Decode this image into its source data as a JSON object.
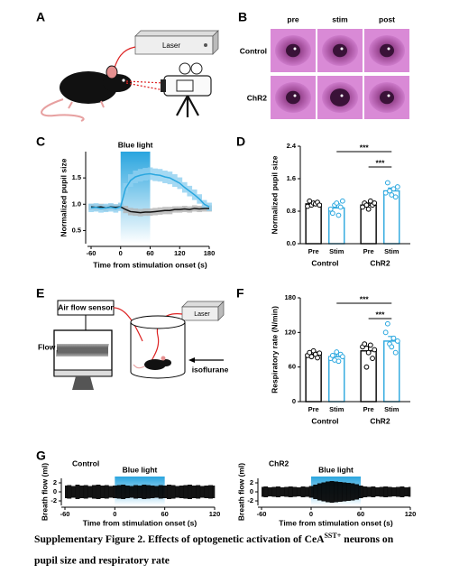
{
  "figure": {
    "A": {
      "letter": "A",
      "laser": "Laser"
    },
    "B": {
      "letter": "B",
      "columns": [
        "pre",
        "stim",
        "post"
      ],
      "rows": [
        "Control",
        "ChR2"
      ]
    },
    "E": {
      "letter": "E",
      "sensor": "Air flow sensor",
      "laser": "Laser",
      "flow": "Flow",
      "gas": "isoflurane"
    }
  },
  "chart_data": [
    {
      "type": "line",
      "panel": "C",
      "annotation": "Blue light",
      "shade": [
        0,
        60
      ],
      "xlabel": "Time from stimulation onset (s)",
      "ylabel": "Normalized pupil size",
      "xlim": [
        -60,
        180
      ],
      "ylim": [
        0.25,
        2.0
      ],
      "xticks": [
        -60,
        0,
        60,
        120,
        180
      ],
      "yticks": [
        0.5,
        {
          "value": 1.0,
          "label": "1.0"
        },
        1.5
      ],
      "x": [
        -60,
        -50,
        -40,
        -30,
        -20,
        -10,
        0,
        10,
        20,
        30,
        40,
        50,
        60,
        70,
        80,
        90,
        100,
        110,
        120,
        130,
        140,
        150,
        160,
        170,
        180
      ],
      "series": [
        {
          "color": "#111111",
          "band_color": "#b3b3b3",
          "values": [
            0.95,
            0.94,
            0.95,
            0.93,
            0.95,
            0.94,
            0.95,
            0.9,
            0.86,
            0.85,
            0.84,
            0.85,
            0.85,
            0.86,
            0.87,
            0.88,
            0.88,
            0.9,
            0.9,
            0.91,
            0.9,
            0.92,
            0.91,
            0.92,
            0.92
          ],
          "errors": [
            0.06,
            0.06,
            0.06,
            0.06,
            0.06,
            0.06,
            0.06,
            0.07,
            0.07,
            0.07,
            0.07,
            0.07,
            0.07,
            0.07,
            0.07,
            0.07,
            0.07,
            0.06,
            0.06,
            0.06,
            0.06,
            0.06,
            0.06,
            0.06,
            0.06
          ]
        },
        {
          "color": "#2aa7df",
          "band_color": "#8fd0f0",
          "values": [
            0.93,
            0.94,
            0.92,
            0.93,
            0.94,
            0.92,
            0.95,
            1.3,
            1.45,
            1.52,
            1.55,
            1.57,
            1.58,
            1.56,
            1.55,
            1.52,
            1.5,
            1.45,
            1.4,
            1.32,
            1.25,
            1.18,
            1.1,
            1.0,
            0.95
          ],
          "errors": [
            0.08,
            0.08,
            0.08,
            0.08,
            0.08,
            0.08,
            0.08,
            0.1,
            0.12,
            0.12,
            0.12,
            0.12,
            0.12,
            0.12,
            0.12,
            0.12,
            0.12,
            0.12,
            0.11,
            0.1,
            0.1,
            0.1,
            0.09,
            0.08,
            0.08
          ]
        }
      ]
    },
    {
      "type": "bar",
      "panel": "D",
      "ylabel": "Normalized pupil size",
      "ylim": [
        0,
        2.4
      ],
      "yticks": [
        {
          "value": 0,
          "label": "0.0"
        },
        0.8,
        1.6,
        2.4
      ],
      "categories": [
        "Pre",
        "Stim",
        "Pre",
        "Stim"
      ],
      "groups": [
        "Control",
        "ChR2"
      ],
      "colors": [
        "#000000",
        "#2aa7df",
        "#000000",
        "#2aa7df"
      ],
      "values": [
        0.98,
        0.88,
        0.95,
        1.3
      ],
      "errors": [
        0.05,
        0.1,
        0.05,
        0.07
      ],
      "points": [
        [
          0.92,
          1.05,
          0.95,
          1.0,
          0.98,
          1.02,
          0.95
        ],
        [
          0.85,
          0.75,
          0.95,
          1.0,
          0.7,
          0.9,
          1.05
        ],
        [
          0.9,
          1.0,
          0.95,
          0.85,
          1.05,
          0.95,
          1.0
        ],
        [
          1.25,
          1.5,
          1.3,
          1.2,
          1.35,
          1.15,
          1.4
        ]
      ],
      "significance": [
        {
          "label": "***",
          "bars": [
            1,
            3
          ]
        },
        {
          "label": "***",
          "bars": [
            2,
            3
          ]
        }
      ]
    },
    {
      "type": "bar",
      "panel": "F",
      "ylabel": "Respiratory rate (N/min)",
      "ylim": [
        0,
        180
      ],
      "yticks": [
        0,
        60,
        120,
        180
      ],
      "categories": [
        "Pre",
        "Stim",
        "Pre",
        "Stim"
      ],
      "groups": [
        "Control",
        "ChR2"
      ],
      "colors": [
        "#000000",
        "#2aa7df",
        "#000000",
        "#2aa7df"
      ],
      "values": [
        82,
        78,
        88,
        105
      ],
      "errors": [
        4,
        5,
        8,
        8
      ],
      "points": [
        [
          80,
          85,
          78,
          88,
          82,
          76,
          84
        ],
        [
          75,
          80,
          72,
          86,
          70,
          82,
          78
        ],
        [
          95,
          100,
          60,
          85,
          98,
          75,
          90
        ],
        [
          120,
          135,
          100,
          95,
          110,
          85,
          105
        ]
      ],
      "significance": [
        {
          "label": "***",
          "bars": [
            1,
            3
          ]
        },
        {
          "label": "***",
          "bars": [
            2,
            3
          ]
        }
      ]
    },
    {
      "type": "trace",
      "panel": "G",
      "title": "Control",
      "annotation": "Blue light",
      "shade": [
        0,
        60
      ],
      "xlabel": "Time from stimulation onset (s)",
      "ylabel": "Breath flow (ml)",
      "xlim": [
        -60,
        120
      ],
      "ylim": [
        -3,
        3
      ],
      "xticks": [
        -60,
        0,
        60,
        120
      ],
      "yticks": [
        -2,
        0,
        2
      ],
      "x": [
        -60,
        -55,
        -50,
        -45,
        -40,
        -35,
        -30,
        -25,
        -20,
        -15,
        -10,
        -5,
        0,
        5,
        10,
        15,
        20,
        25,
        30,
        35,
        40,
        45,
        50,
        55,
        60,
        65,
        70,
        75,
        80,
        85,
        90,
        95,
        100,
        105,
        110,
        115,
        120
      ],
      "values": [
        1.4,
        1.5,
        1.3,
        1.6,
        1.4,
        1.5,
        1.3,
        1.5,
        1.6,
        1.4,
        1.5,
        1.3,
        1.4,
        1.5,
        1.6,
        1.4,
        1.3,
        1.5,
        1.4,
        1.6,
        1.5,
        1.4,
        1.3,
        1.5,
        1.4,
        1.6,
        1.5,
        1.3,
        1.4,
        1.5,
        1.6,
        1.4,
        1.5,
        1.3,
        1.4,
        1.5,
        1.4
      ]
    },
    {
      "type": "trace",
      "title": "ChR2",
      "annotation": "Blue light",
      "shade": [
        0,
        60
      ],
      "xlabel": "Time from stimulation onset (s)",
      "ylabel": "Breath flow (ml)",
      "xlim": [
        -60,
        120
      ],
      "ylim": [
        -3,
        3
      ],
      "xticks": [
        -60,
        0,
        60,
        120
      ],
      "yticks": [
        -2,
        0,
        2
      ],
      "x": [
        -60,
        -55,
        -50,
        -45,
        -40,
        -35,
        -30,
        -25,
        -20,
        -15,
        -10,
        -5,
        0,
        5,
        10,
        15,
        20,
        25,
        30,
        35,
        40,
        45,
        50,
        55,
        60,
        65,
        70,
        75,
        80,
        85,
        90,
        95,
        100,
        105,
        110,
        115,
        120
      ],
      "values": [
        1.1,
        1.2,
        1.0,
        1.1,
        1.2,
        1.0,
        1.1,
        1.2,
        1.1,
        1.0,
        1.2,
        1.1,
        1.3,
        1.6,
        1.9,
        2.1,
        2.3,
        2.4,
        2.3,
        2.2,
        2.1,
        2.0,
        1.9,
        1.7,
        1.4,
        1.2,
        1.1,
        1.2,
        1.0,
        1.1,
        1.2,
        1.1,
        1.0,
        1.1,
        1.2,
        1.0,
        1.1
      ]
    }
  ],
  "caption": {
    "text": "Supplementary Figure 2. Effects of optogenetic activation of CeA",
    "superscript": "SST+",
    "text_after": "neurons on",
    "line2": "pupil size and respiratory rate"
  }
}
